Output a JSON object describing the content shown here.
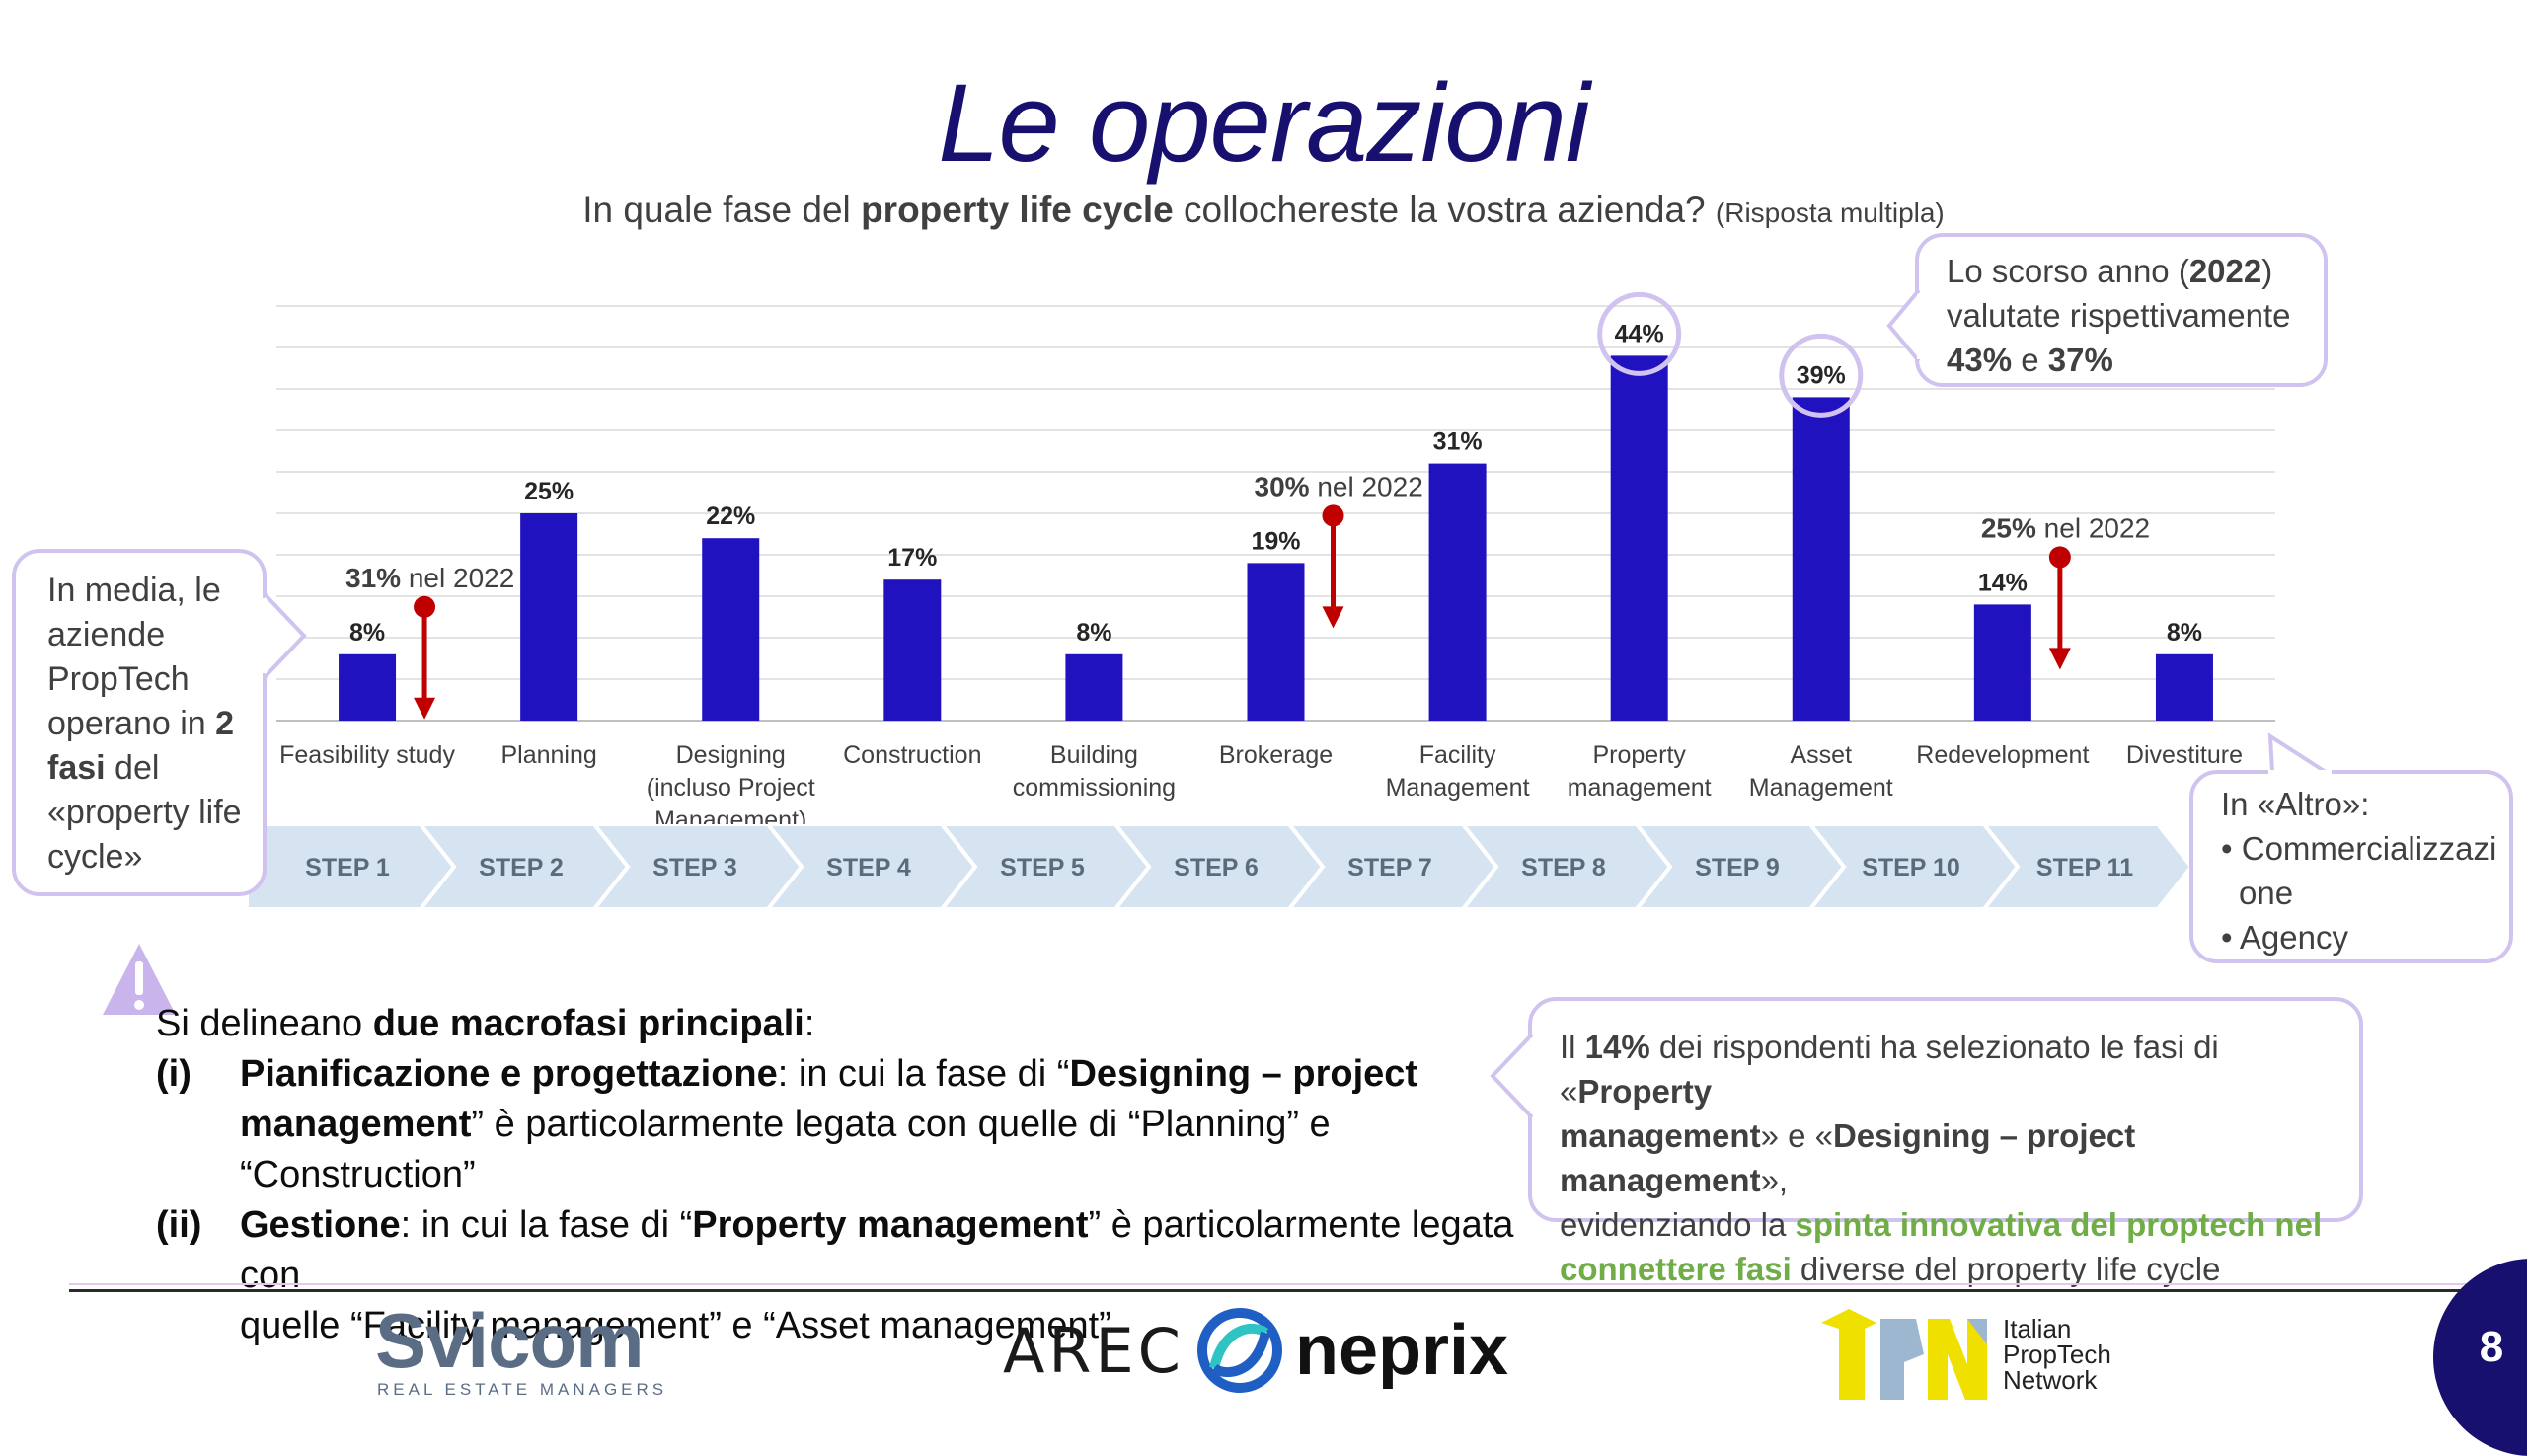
{
  "header": {
    "title": "Le operazioni",
    "subtitle_pre": "In quale fase del ",
    "subtitle_bold": "property life cycle",
    "subtitle_post": " collochereste la vostra azienda?",
    "subtitle_note": "(Risposta multipla)"
  },
  "chart_data": {
    "type": "bar",
    "categories": [
      [
        "Feasibility study"
      ],
      [
        "Planning"
      ],
      [
        "Designing",
        "(incluso Project",
        "Management)"
      ],
      [
        "Construction"
      ],
      [
        "Building",
        "commissioning"
      ],
      [
        "Brokerage"
      ],
      [
        "Facility",
        "Management"
      ],
      [
        "Property",
        "management"
      ],
      [
        "Asset",
        "Management"
      ],
      [
        "Redevelopment"
      ],
      [
        "Divestiture"
      ]
    ],
    "values": [
      8,
      25,
      22,
      17,
      8,
      19,
      31,
      44,
      39,
      14,
      8
    ],
    "value_labels": [
      "8%",
      "25%",
      "22%",
      "17%",
      "8%",
      "19%",
      "31%",
      "44%",
      "39%",
      "14%",
      "8%"
    ],
    "ylim": [
      0,
      50
    ],
    "grid": true,
    "bar_color": "#2112c0",
    "highlighted": [
      7,
      8
    ],
    "comparisons_2022": [
      {
        "index": 0,
        "value": "31%",
        "text": " nel 2022"
      },
      {
        "index": 5,
        "value": "30%",
        "text": " nel 2022"
      },
      {
        "index": 9,
        "value": "25%",
        "text": " nel 2022"
      }
    ],
    "steps": [
      "STEP 1",
      "STEP 2",
      "STEP 3",
      "STEP 4",
      "STEP 5",
      "STEP 6",
      "STEP 7",
      "STEP 8",
      "STEP 9",
      "STEP 10",
      "STEP 11"
    ]
  },
  "callout_left": {
    "l1": "In media, le",
    "l2": "aziende",
    "l3": "PropTech",
    "l4_pre": "operano in ",
    "l4_bold": "2",
    "l5_bold": "fasi",
    "l5_post": " del",
    "l6": "«property life",
    "l7": "cycle»"
  },
  "callout_top_right": {
    "l1_pre": "Lo scorso anno (",
    "l1_bold": "2022",
    "l1_post": ")",
    "l2": "valutate rispettivamente",
    "l3_bold_a": "43%",
    "l3_mid": " e ",
    "l3_bold_b": "37%"
  },
  "callout_altro": {
    "title": "In «Altro»:",
    "items": [
      "Commercializzazi one",
      "Agency"
    ],
    "item1_line1": "Commercializzazi",
    "item1_line2": "one",
    "item2": "Agency"
  },
  "warning": {
    "intro_pre": "Si delineano ",
    "intro_bold": "due macrofasi principali",
    "intro_post": ":",
    "i_num": "(i)",
    "i_bold": "Pianificazione e progettazione",
    "i_text1": ": in cui la fase di “",
    "i_bold2": "Designing – project",
    "i_bold3": "management",
    "i_text2": "” è particolarmente legata con quelle di “Planning” e “Construction”",
    "ii_num": "(ii)",
    "ii_bold": "Gestione",
    "ii_text1": ": in cui la fase di “",
    "ii_bold2": "Property management",
    "ii_text2": "” è particolarmente legata con",
    "ii_text3": "quelle “Facility management” e “Asset management”"
  },
  "insight": {
    "t1": "Il ",
    "b1": "14%",
    "t2": " dei rispondenti ha selezionato le fasi di «",
    "b2": "Property",
    "b3": "management",
    "t3": "» e «",
    "b4": "Designing – project management",
    "t4": "»,",
    "t5": "evidenziando la ",
    "g1": "spinta innovativa del proptech nel",
    "g2": "connettere fasi",
    "t6": " diverse del property life cycle"
  },
  "footer": {
    "logo1_main": "Svicom",
    "logo1_sub": "REAL ESTATE MANAGERS",
    "logo2_a": "AREC",
    "logo2_b": "neprix",
    "logo3_l1": "Italian",
    "logo3_l2": "PropTech",
    "logo3_l3": "Network",
    "page": "8"
  }
}
